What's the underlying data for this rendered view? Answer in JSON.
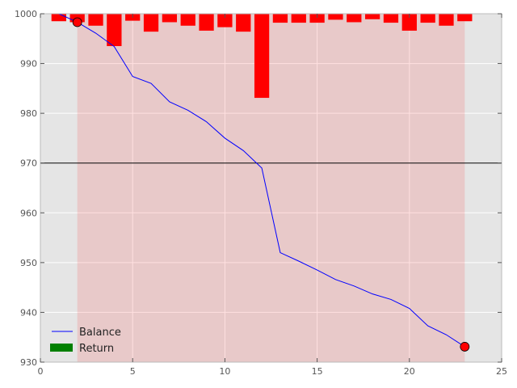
{
  "chart_data": {
    "type": "line",
    "title": "",
    "xlabel": "",
    "ylabel": "",
    "xlim": [
      0,
      25
    ],
    "ylim": [
      930,
      1000
    ],
    "xticks": [
      0,
      5,
      10,
      15,
      20,
      25
    ],
    "yticks": [
      930,
      940,
      950,
      960,
      970,
      980,
      990,
      1000
    ],
    "xtick_labels": [
      "0",
      "5",
      "10",
      "15",
      "20",
      "25"
    ],
    "ytick_labels": [
      "930",
      "940",
      "950",
      "960",
      "970",
      "980",
      "990",
      "1000"
    ],
    "grid": true,
    "background": "#e5e5e5",
    "series": [
      {
        "name": "Balance",
        "type": "line",
        "color": "#0000ff",
        "x": [
          1,
          2,
          3,
          4,
          5,
          6,
          7,
          8,
          9,
          10,
          11,
          12,
          13,
          14,
          15,
          16,
          17,
          18,
          19,
          20,
          21,
          22,
          23
        ],
        "y": [
          1000,
          998.3,
          996.1,
          993.4,
          987.4,
          986.0,
          982.3,
          980.6,
          978.3,
          975.0,
          972.5,
          969.0,
          952.0,
          950.3,
          948.5,
          946.6,
          945.3,
          943.7,
          942.6,
          940.8,
          937.3,
          935.5,
          933.1
        ]
      },
      {
        "name": "Return",
        "type": "bar",
        "color": "#ff0000",
        "legend_color": "#008000",
        "baseline": 1000,
        "x": [
          1,
          2,
          3,
          4,
          5,
          6,
          7,
          8,
          9,
          10,
          11,
          12,
          13,
          14,
          15,
          16,
          17,
          18,
          19,
          20,
          21,
          22,
          23
        ],
        "y": [
          998.5,
          998.3,
          997.6,
          993.5,
          998.6,
          996.4,
          998.3,
          997.6,
          996.6,
          997.3,
          996.4,
          983.1,
          998.2,
          998.2,
          998.2,
          998.8,
          998.3,
          998.9,
          998.2,
          996.6,
          998.2,
          997.6,
          998.5
        ]
      }
    ],
    "shaded_region": {
      "x_start": 2,
      "x_end": 23,
      "color": "#ff0000",
      "alpha": 0.12
    },
    "hline": {
      "y": 970,
      "color": "#000000"
    },
    "markers": [
      {
        "x": 2,
        "y": 998.3,
        "color": "#ff0000"
      },
      {
        "x": 23,
        "y": 933.1,
        "color": "#ff0000"
      }
    ],
    "legend": {
      "placement": "lower-left",
      "entries": [
        {
          "label": "Balance",
          "color": "#0000ff",
          "style": "line"
        },
        {
          "label": "Return",
          "color": "#008000",
          "style": "patch"
        }
      ]
    }
  }
}
